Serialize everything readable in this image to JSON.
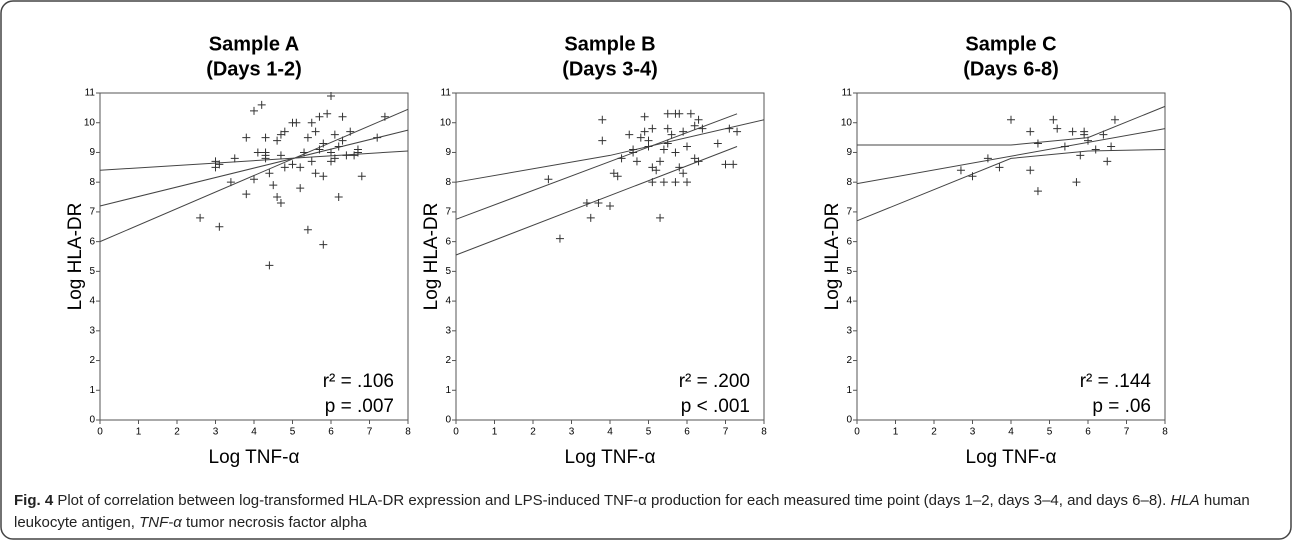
{
  "chart_data": [
    {
      "type": "scatter",
      "title": "Sample A",
      "subtitle": "(Days 1-2)",
      "x_label": "Log TNF-α",
      "y_label": "Log HLA-DR",
      "annotations": [
        "r² = .106",
        "p = .007"
      ],
      "xlim": [
        0,
        8
      ],
      "ylim": [
        0,
        11
      ],
      "xticks": [
        0,
        1,
        2,
        3,
        4,
        5,
        6,
        7,
        8
      ],
      "yticks": [
        0,
        1,
        2,
        3,
        4,
        5,
        6,
        7,
        8,
        9,
        10,
        11
      ],
      "x": [
        2.6,
        3.0,
        3.0,
        3.1,
        3.1,
        3.4,
        3.5,
        3.8,
        3.8,
        4.0,
        4.0,
        4.1,
        4.2,
        4.3,
        4.3,
        4.3,
        4.4,
        4.4,
        4.5,
        4.6,
        4.6,
        4.7,
        4.7,
        4.7,
        4.8,
        4.8,
        5.0,
        5.0,
        5.1,
        5.2,
        5.2,
        5.3,
        5.4,
        5.4,
        5.5,
        5.5,
        5.6,
        5.7,
        5.7,
        5.8,
        5.8,
        5.8,
        5.9,
        6.0,
        6.0,
        6.0,
        6.1,
        6.1,
        6.2,
        6.2,
        6.3,
        6.3,
        6.4,
        6.5,
        6.6,
        6.7,
        6.8,
        7.2,
        7.4,
        4.3,
        5.6,
        6.7
      ],
      "y": [
        6.8,
        8.7,
        8.5,
        8.6,
        6.5,
        8.0,
        8.8,
        7.6,
        9.5,
        10.4,
        8.1,
        9.0,
        10.6,
        9.5,
        8.9,
        8.8,
        8.3,
        5.2,
        7.9,
        7.5,
        9.4,
        9.6,
        8.9,
        7.3,
        9.7,
        8.5,
        8.6,
        10.0,
        10.0,
        8.5,
        7.8,
        9.0,
        9.5,
        6.4,
        8.7,
        10.0,
        8.3,
        10.2,
        9.1,
        5.9,
        8.2,
        9.3,
        10.3,
        9.0,
        8.7,
        10.9,
        8.8,
        9.6,
        7.5,
        9.2,
        10.2,
        9.4,
        8.9,
        9.7,
        8.9,
        9.1,
        8.2,
        9.5,
        10.2,
        9.0,
        9.7,
        9.0
      ],
      "lines": [
        {
          "x": [
            0,
            8
          ],
          "y": [
            8.4,
            9.05
          ]
        },
        {
          "x": [
            0,
            8
          ],
          "y": [
            7.2,
            9.75
          ]
        },
        {
          "x": [
            0,
            8
          ],
          "y": [
            6.0,
            10.45
          ]
        }
      ]
    },
    {
      "type": "scatter",
      "title": "Sample B",
      "subtitle": "(Days 3-4)",
      "x_label": "Log TNF-α",
      "y_label": "Log HLA-DR",
      "annotations": [
        "r² = .200",
        "p < .001"
      ],
      "xlim": [
        0,
        8
      ],
      "ylim": [
        0,
        11
      ],
      "xticks": [
        0,
        1,
        2,
        3,
        4,
        5,
        6,
        7,
        8
      ],
      "yticks": [
        0,
        1,
        2,
        3,
        4,
        5,
        6,
        7,
        8,
        9,
        10,
        11
      ],
      "x": [
        2.4,
        2.7,
        3.4,
        3.5,
        3.7,
        3.8,
        3.8,
        4.0,
        4.1,
        4.2,
        4.3,
        4.5,
        4.6,
        4.6,
        4.7,
        4.8,
        4.9,
        5.0,
        5.0,
        5.1,
        5.1,
        5.1,
        5.2,
        5.3,
        5.3,
        5.4,
        5.4,
        5.5,
        5.5,
        5.5,
        5.7,
        5.7,
        5.7,
        5.8,
        5.8,
        5.9,
        5.9,
        6.0,
        6.0,
        6.1,
        6.2,
        6.2,
        6.3,
        6.3,
        6.4,
        6.8,
        7.0,
        7.1,
        7.2,
        7.3,
        4.9,
        5.6
      ],
      "y": [
        8.1,
        6.1,
        7.3,
        6.8,
        7.3,
        10.1,
        9.4,
        7.2,
        8.3,
        8.2,
        8.8,
        9.6,
        9.1,
        9.0,
        8.7,
        9.5,
        10.2,
        9.4,
        9.2,
        8.5,
        9.8,
        8.0,
        8.4,
        8.7,
        6.8,
        9.1,
        8.0,
        9.8,
        10.3,
        9.3,
        10.3,
        8.0,
        9.0,
        10.3,
        8.5,
        9.7,
        8.3,
        9.2,
        8.0,
        10.3,
        9.9,
        8.8,
        10.1,
        8.7,
        9.8,
        9.3,
        8.6,
        9.8,
        8.6,
        9.7,
        9.7,
        9.6
      ],
      "lines": [
        {
          "x": [
            0,
            4,
            8
          ],
          "y": [
            8.0,
            8.9,
            10.1
          ]
        },
        {
          "x": [
            0,
            7.3
          ],
          "y": [
            6.75,
            10.3
          ]
        },
        {
          "x": [
            0,
            7.3
          ],
          "y": [
            5.55,
            9.2
          ]
        }
      ]
    },
    {
      "type": "scatter",
      "title": "Sample C",
      "subtitle": "(Days 6-8)",
      "x_label": "Log TNF-α",
      "y_label": "Log HLA-DR",
      "annotations": [
        "r² = .144",
        "p = .06"
      ],
      "xlim": [
        0,
        8
      ],
      "ylim": [
        0,
        11
      ],
      "xticks": [
        0,
        1,
        2,
        3,
        4,
        5,
        6,
        7,
        8
      ],
      "yticks": [
        0,
        1,
        2,
        3,
        4,
        5,
        6,
        7,
        8,
        9,
        10,
        11
      ],
      "x": [
        2.7,
        3.0,
        3.4,
        3.7,
        4.0,
        4.5,
        4.5,
        4.7,
        4.7,
        5.1,
        5.2,
        5.4,
        5.6,
        5.7,
        5.8,
        5.9,
        5.9,
        6.0,
        6.2,
        6.4,
        6.5,
        6.6,
        6.7
      ],
      "y": [
        8.4,
        8.2,
        8.8,
        8.5,
        10.1,
        9.7,
        8.4,
        7.7,
        9.3,
        10.1,
        9.8,
        9.2,
        9.7,
        8.0,
        8.9,
        9.7,
        9.6,
        9.4,
        9.1,
        9.6,
        8.7,
        9.2,
        10.1
      ],
      "lines": [
        {
          "x": [
            0,
            4,
            6,
            8
          ],
          "y": [
            9.25,
            9.25,
            9.5,
            10.55
          ]
        },
        {
          "x": [
            0,
            8
          ],
          "y": [
            7.95,
            9.8
          ]
        },
        {
          "x": [
            0,
            4,
            6,
            8
          ],
          "y": [
            6.7,
            8.8,
            9.05,
            9.1
          ]
        }
      ]
    }
  ],
  "caption": {
    "label": "Fig. 4",
    "text": [
      " Plot of correlation between log-transformed HLA-DR expression and LPS-induced TNF-α production for each measured time point (days 1–2, days 3–4, and days 6–8). ",
      "HLA",
      " human leukocyte antigen, ",
      "TNF-α",
      " tumor necrosis factor alpha"
    ]
  }
}
